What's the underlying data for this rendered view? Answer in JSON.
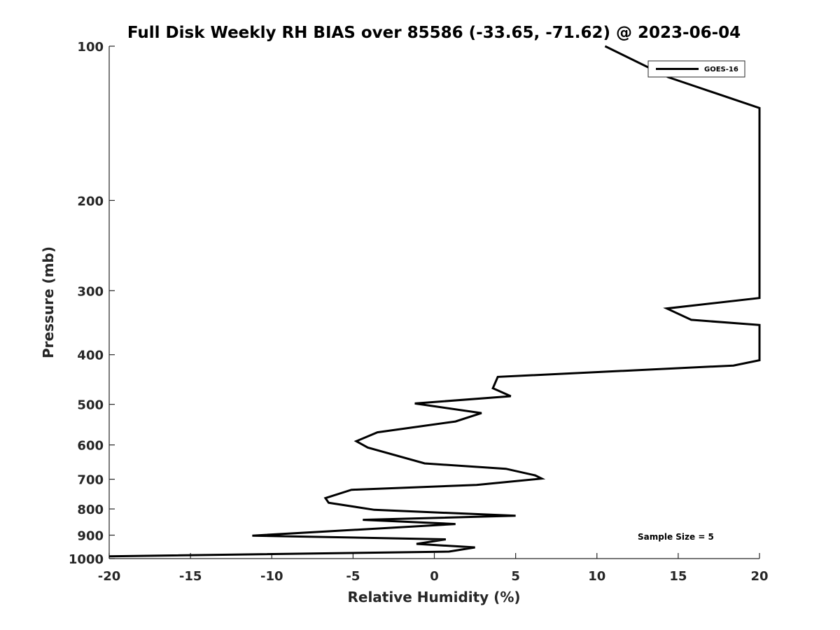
{
  "chart_data": {
    "type": "line",
    "title": "Full Disk Weekly RH BIAS over 85586 (-33.65, -71.62) @ 2023-06-04",
    "xlabel": "Relative Humidity (%)",
    "ylabel": "Pressure (mb)",
    "xlim": [
      -20,
      20
    ],
    "ylim": [
      100,
      1000
    ],
    "y_scale": "log",
    "y_reversed": true,
    "x_ticks": [
      -20,
      -15,
      -10,
      -5,
      0,
      5,
      10,
      15,
      20
    ],
    "y_ticks": [
      100,
      200,
      300,
      400,
      500,
      600,
      700,
      800,
      900,
      1000
    ],
    "grid": false,
    "legend_position": "top-right",
    "annotation": "Sample Size = 5",
    "series": [
      {
        "name": "GOES-16",
        "color": "#000000",
        "points": [
          [
            10.5,
            100
          ],
          [
            14.4,
            115
          ],
          [
            20.0,
            132
          ],
          [
            20.0,
            310
          ],
          [
            14.3,
            325
          ],
          [
            15.8,
            342
          ],
          [
            20.0,
            350
          ],
          [
            20.0,
            410
          ],
          [
            18.4,
            420
          ],
          [
            3.9,
            442
          ],
          [
            3.6,
            465
          ],
          [
            4.7,
            482
          ],
          [
            -1.2,
            498
          ],
          [
            2.9,
            520
          ],
          [
            1.3,
            540
          ],
          [
            -3.5,
            567
          ],
          [
            -4.8,
            590
          ],
          [
            -4.1,
            607
          ],
          [
            -0.6,
            652
          ],
          [
            4.4,
            668
          ],
          [
            6.2,
            688
          ],
          [
            6.6,
            698
          ],
          [
            2.6,
            718
          ],
          [
            -5.1,
            734
          ],
          [
            -6.7,
            762
          ],
          [
            -6.5,
            778
          ],
          [
            -3.7,
            803
          ],
          [
            5.0,
            825
          ],
          [
            -4.4,
            840
          ],
          [
            1.3,
            856
          ],
          [
            -3.8,
            875
          ],
          [
            -11.2,
            902
          ],
          [
            0.7,
            917
          ],
          [
            -1.1,
            936
          ],
          [
            2.5,
            951
          ],
          [
            0.9,
            969
          ],
          [
            -20.0,
            990
          ]
        ]
      }
    ]
  }
}
